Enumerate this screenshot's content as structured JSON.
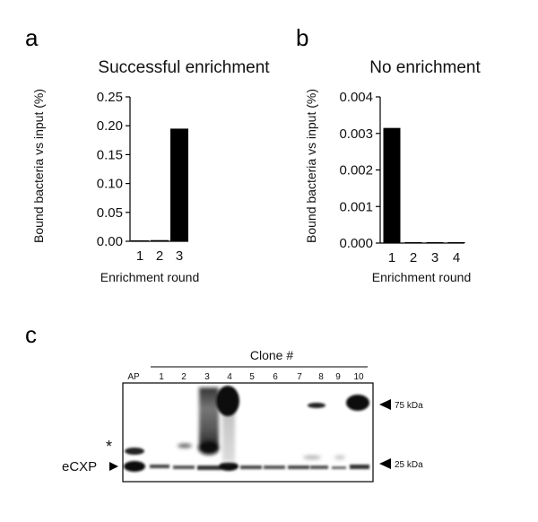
{
  "panels": {
    "a": {
      "letter": "a"
    },
    "b": {
      "letter": "b"
    },
    "c": {
      "letter": "c"
    }
  },
  "chart_data": [
    {
      "type": "bar",
      "title": "Successful enrichment",
      "xlabel": "Enrichment round",
      "ylabel": "Bound bacteria vs input (%)",
      "categories": [
        "1",
        "2",
        "3"
      ],
      "values": [
        0.0005,
        0.002,
        0.195
      ],
      "ylim": [
        0,
        0.25
      ],
      "yticks": [
        "0.00",
        "0.05",
        "0.10",
        "0.15",
        "0.20",
        "0.25"
      ],
      "ytick_values": [
        0,
        0.05,
        0.1,
        0.15,
        0.2,
        0.25
      ],
      "bar_color": "#000000",
      "grid": false
    },
    {
      "type": "bar",
      "title": "No enrichment",
      "xlabel": "Enrichment round",
      "ylabel": "Bound bacteria vs input (%)",
      "categories": [
        "1",
        "2",
        "3",
        "4"
      ],
      "values": [
        0.00315,
        1e-05,
        1e-05,
        2e-05
      ],
      "ylim": [
        0,
        0.004
      ],
      "yticks": [
        "0.000",
        "0.001",
        "0.002",
        "0.003",
        "0.004"
      ],
      "ytick_values": [
        0,
        0.001,
        0.002,
        0.003,
        0.004
      ],
      "bar_color": "#000000",
      "grid": false
    }
  ],
  "blot": {
    "header": "Clone #",
    "lanes": [
      "AP",
      "1",
      "2",
      "3",
      "4",
      "5",
      "6",
      "7",
      "8",
      "9",
      "10"
    ],
    "markers": [
      "75 kDa",
      "25 kDa"
    ],
    "star": "*",
    "ecxp_label": "eCXP"
  }
}
